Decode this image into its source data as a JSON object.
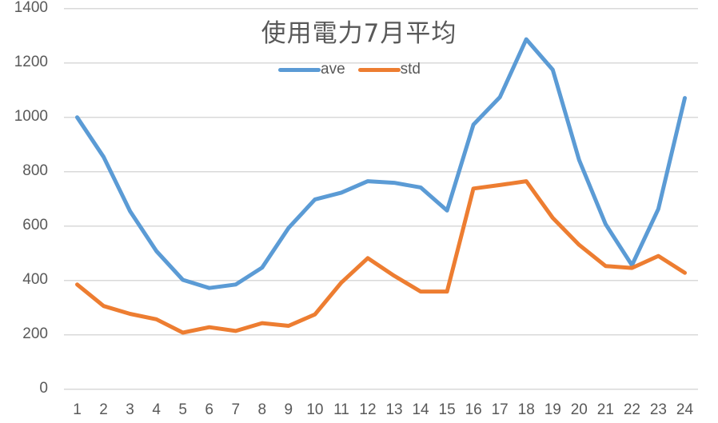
{
  "chart_data": {
    "type": "line",
    "title": "使用電力7月平均",
    "xlabel": "",
    "ylabel": "",
    "ylim": [
      0,
      1400
    ],
    "yticks": [
      0,
      200,
      400,
      600,
      800,
      1000,
      1200,
      1400
    ],
    "grid": true,
    "legend_position": "top",
    "categories": [
      "1",
      "2",
      "3",
      "4",
      "5",
      "6",
      "7",
      "8",
      "9",
      "10",
      "11",
      "12",
      "13",
      "14",
      "15",
      "16",
      "17",
      "18",
      "19",
      "20",
      "21",
      "22",
      "23",
      "24"
    ],
    "series": [
      {
        "name": "ave",
        "color": "#5B9BD5",
        "values": [
          1000,
          854,
          655,
          508,
          402,
          372,
          385,
          447,
          593,
          698,
          723,
          765,
          759,
          742,
          657,
          973,
          1074,
          1287,
          1175,
          843,
          607,
          456,
          663,
          1071
        ]
      },
      {
        "name": "std",
        "color": "#ED7D31",
        "values": [
          385,
          306,
          277,
          257,
          208,
          228,
          214,
          243,
          233,
          275,
          392,
          482,
          417,
          359,
          359,
          738,
          751,
          765,
          630,
          531,
          453,
          446,
          490,
          428
        ]
      }
    ]
  },
  "colors": {
    "gridline": "#D9D9D9",
    "text": "#595959",
    "background": "#FFFFFF"
  }
}
